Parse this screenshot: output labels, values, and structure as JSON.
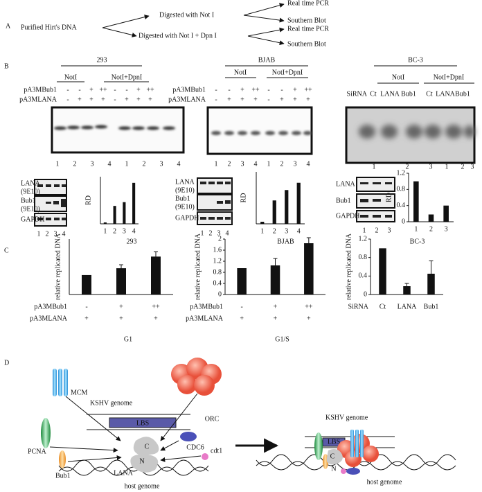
{
  "panel_a": {
    "label": "A",
    "source": "Purified Hirt's DNA",
    "branches": [
      {
        "step": "Digested with Not I",
        "outputs": [
          "Real time PCR",
          "Southern Blot"
        ]
      },
      {
        "step": "Digested with Not I + Dpn I",
        "outputs": [
          "Real time PCR",
          "Southern Blot"
        ]
      }
    ]
  },
  "panel_b": {
    "label": "B",
    "blocks": [
      {
        "title": "293",
        "groups": [
          "NotI",
          "NotI+DpnI"
        ],
        "rows": [
          {
            "name": "pA3MBub1",
            "lanes": [
              "-",
              "-",
              "+",
              "++",
              "-",
              "-",
              "+",
              "++"
            ]
          },
          {
            "name": "pA3MLANA",
            "lanes": [
              "-",
              "+",
              "+",
              "+",
              "-",
              "+",
              "+",
              "+"
            ]
          }
        ],
        "lane_numbers": [
          "1",
          "2",
          "3",
          "4",
          "1",
          "2",
          "3",
          "4"
        ],
        "western": [
          {
            "protein": "LANA",
            "antibody": "(9E10)"
          },
          {
            "protein": "Bub1",
            "antibody": "(9E10)"
          },
          {
            "protein": "GAPDH"
          }
        ],
        "western_lanes": [
          "1",
          "2",
          "3",
          "4"
        ]
      },
      {
        "title": "BJAB",
        "groups": [
          "NotI",
          "NotI+DpnI"
        ],
        "rows": [
          {
            "name": "pA3MBub1",
            "lanes": [
              "-",
              "-",
              "+",
              "++",
              "-",
              "-",
              "+",
              "++"
            ]
          },
          {
            "name": "pA3MLANA",
            "lanes": [
              "-",
              "+",
              "+",
              "+",
              "-",
              "+",
              "+",
              "+"
            ]
          }
        ],
        "lane_numbers": [
          "1",
          "2",
          "3",
          "4",
          "1",
          "2",
          "3",
          "4"
        ],
        "western": [
          {
            "protein": "LANA",
            "antibody": "(9E10)"
          },
          {
            "protein": "Bub1",
            "antibody": "(9E10)"
          },
          {
            "protein": "GAPDH"
          }
        ],
        "western_lanes": [
          "1",
          "2",
          "3",
          "4"
        ]
      },
      {
        "title": "BC-3",
        "groups": [
          "NotI",
          "NotI+DpnI"
        ],
        "rows": [
          {
            "name": "SiRNA",
            "lanes": [
              "Ct",
              "LANA",
              "Bub1",
              "Ct",
              "LANA",
              "Bub1"
            ]
          }
        ],
        "lane_numbers": [
          "1",
          "2",
          "3",
          "1",
          "2",
          "3"
        ],
        "western": [
          {
            "protein": "LANA"
          },
          {
            "protein": "Bub1"
          },
          {
            "protein": "GAPDH"
          }
        ],
        "western_lanes": [
          "1",
          "2",
          "3"
        ]
      }
    ]
  },
  "panel_c": {
    "label": "C"
  },
  "panel_d": {
    "label": "D",
    "left": {
      "mcm": "MCM",
      "kshv": "KSHV  genome",
      "orc": "ORC",
      "pcna": "PCNA",
      "lbs": "LBS",
      "c": "C",
      "n": "N",
      "cdc6": "CDC6",
      "lana": "LANA",
      "bub1": "Bub1",
      "cdt1": "cdt1",
      "host": "host genome"
    },
    "right": {
      "kshv": "KSHV  genome",
      "lbs": "LBS",
      "c": "C",
      "n": "N",
      "host": "host genome"
    }
  },
  "chart_data": [
    {
      "type": "bar",
      "y_label": "RD",
      "categories": [
        "1",
        "2",
        "3",
        "4"
      ],
      "values": [
        0.03,
        0.38,
        0.46,
        0.87
      ],
      "ylim": [
        0,
        1
      ],
      "color": "#111111"
    },
    {
      "type": "bar",
      "y_label": "RD",
      "categories": [
        "1",
        "2",
        "3",
        "4"
      ],
      "values": [
        0.04,
        0.45,
        0.65,
        0.79
      ],
      "ylim": [
        0,
        1
      ],
      "color": "#111111"
    },
    {
      "type": "bar",
      "y_label": "RD",
      "categories": [
        "1",
        "2",
        "3"
      ],
      "values": [
        1.0,
        0.18,
        0.4
      ],
      "ylim": [
        0,
        1.2
      ],
      "yticks": [
        0,
        0.4,
        0.8,
        1.2
      ],
      "color": "#111111"
    },
    {
      "type": "bar",
      "title": "293",
      "y_label": "relative replicated DNA",
      "category_name": "pA3MBub1",
      "categories": [
        "-",
        "+",
        "++"
      ],
      "second_category_name": "pA3MLANA",
      "second_categories": [
        "+",
        "+",
        "+"
      ],
      "footer": "G1",
      "values": [
        1.0,
        1.35,
        1.95
      ],
      "errors": [
        null,
        0.18,
        0.25
      ],
      "ylim": [
        0,
        2.85
      ],
      "color": "#111111"
    },
    {
      "type": "bar",
      "title": "BJAB",
      "y_label": "relative replicated DNA",
      "category_name": "pA3MBub1",
      "categories": [
        "-",
        "+",
        "++"
      ],
      "second_category_name": "pA3MLANA",
      "second_categories": [
        "+",
        "+",
        "+"
      ],
      "footer": "G1/S",
      "values": [
        0.95,
        1.05,
        1.85
      ],
      "errors": [
        null,
        0.25,
        0.2
      ],
      "ylim": [
        0,
        2
      ],
      "yticks": [
        0,
        0.4,
        0.8,
        1.2,
        1.6,
        2
      ],
      "color": "#111111"
    },
    {
      "type": "bar",
      "title": "BC-3",
      "y_label": "relative replicated DNA",
      "category_name": "SiRNA",
      "categories": [
        "Ct",
        "LANA",
        "Bub1"
      ],
      "values": [
        1.0,
        0.18,
        0.45
      ],
      "errors": [
        null,
        0.06,
        0.28
      ],
      "ylim": [
        0,
        1.2
      ],
      "yticks": [
        0,
        0.4,
        0.8,
        1.2
      ],
      "color": "#111111"
    }
  ]
}
